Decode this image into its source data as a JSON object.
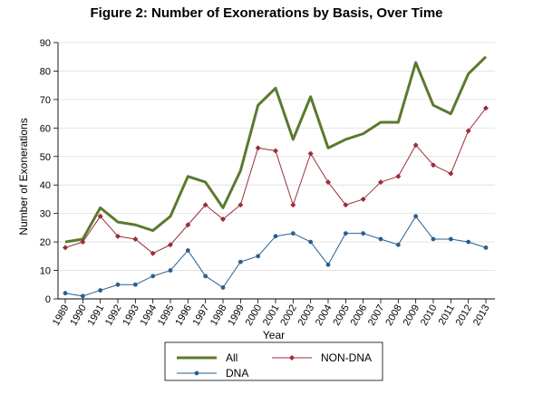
{
  "chart_data": {
    "type": "line",
    "title": "Figure 2:  Number of Exonerations by Basis, Over Time",
    "xlabel": "Year",
    "ylabel": "Number of Exonerations",
    "ylim": [
      0,
      90
    ],
    "yticks": [
      0,
      10,
      20,
      30,
      40,
      50,
      60,
      70,
      80,
      90
    ],
    "grid": "horizontal",
    "legend_position": "bottom",
    "x": [
      "1989",
      "1990",
      "1991",
      "1992",
      "1993",
      "1994",
      "1995",
      "1996",
      "1997",
      "1998",
      "1999",
      "2000",
      "2001",
      "2002",
      "2003",
      "2004",
      "2005",
      "2006",
      "2007",
      "2008",
      "2009",
      "2010",
      "2011",
      "2012",
      "2013"
    ],
    "series": [
      {
        "name": "All",
        "color": "#5a7a2e",
        "marker": "none",
        "values": [
          20,
          21,
          32,
          27,
          26,
          24,
          29,
          43,
          41,
          32,
          45,
          68,
          74,
          56,
          71,
          53,
          56,
          58,
          62,
          62,
          83,
          68,
          65,
          79,
          85
        ]
      },
      {
        "name": "NON-DNA",
        "color": "#9b2d3a",
        "marker": "diamond",
        "values": [
          18,
          20,
          29,
          22,
          21,
          16,
          19,
          26,
          33,
          28,
          33,
          53,
          52,
          33,
          51,
          41,
          33,
          35,
          41,
          43,
          54,
          47,
          44,
          59,
          67
        ]
      },
      {
        "name": "DNA",
        "color": "#2b5f8e",
        "marker": "circle",
        "values": [
          2,
          1,
          3,
          5,
          5,
          8,
          10,
          17,
          8,
          4,
          13,
          15,
          22,
          23,
          20,
          12,
          23,
          23,
          21,
          19,
          29,
          21,
          21,
          20,
          18
        ]
      }
    ]
  }
}
